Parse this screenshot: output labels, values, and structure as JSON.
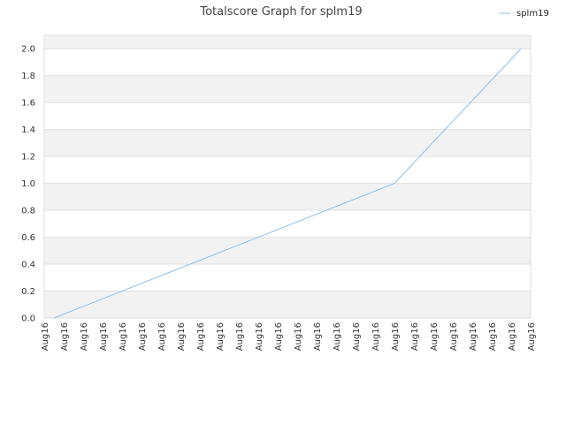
{
  "chart_data": {
    "type": "line",
    "title": "Totalscore Graph for splm19",
    "xlabel": "",
    "ylabel": "",
    "x_tick_labels": [
      "Aug16",
      "Aug16",
      "Aug16",
      "Aug16",
      "Aug16",
      "Aug16",
      "Aug16",
      "Aug16",
      "Aug16",
      "Aug16",
      "Aug16",
      "Aug16",
      "Aug16",
      "Aug16",
      "Aug16",
      "Aug16",
      "Aug16",
      "Aug16",
      "Aug16",
      "Aug16",
      "Aug16",
      "Aug16",
      "Aug16",
      "Aug16",
      "Aug16",
      "Aug16"
    ],
    "y_tick_labels": [
      "0.0",
      "0.2",
      "0.4",
      "0.6",
      "0.8",
      "1.0",
      "1.2",
      "1.4",
      "1.6",
      "1.8",
      "2.0"
    ],
    "ylim": [
      0,
      2.1
    ],
    "grid": true,
    "legend_position": "top-right",
    "series": [
      {
        "name": "splm19",
        "color": "#88c0f0",
        "points": [
          [
            0.5,
            0.0
          ],
          [
            18,
            1.0
          ],
          [
            24.5,
            2.0
          ]
        ]
      }
    ]
  },
  "colors": {
    "band": "#f2f2f2",
    "grid": "#e0e0e0",
    "axis": "#cccccc"
  }
}
